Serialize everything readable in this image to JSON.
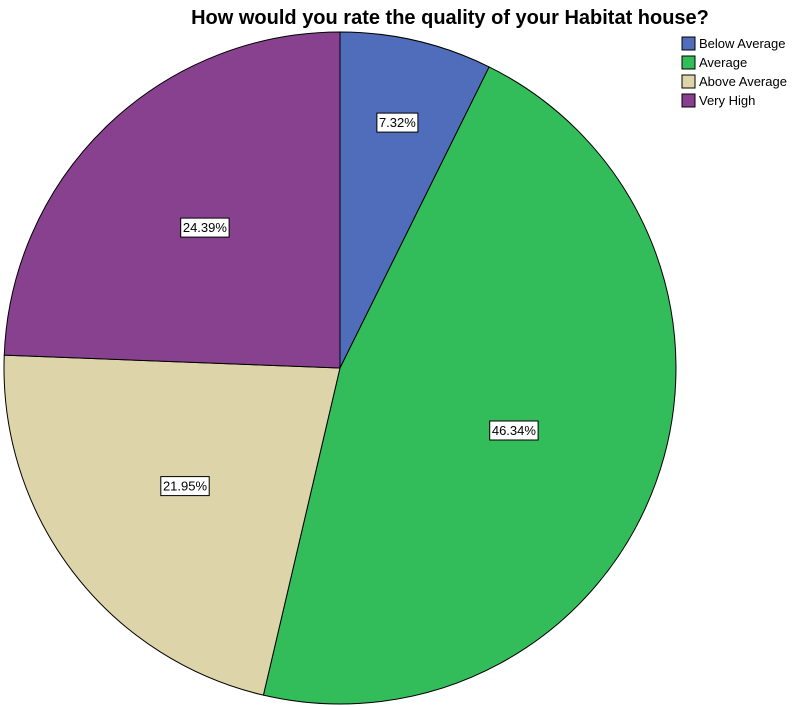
{
  "chart_data": {
    "type": "pie",
    "title": "How would you rate the quality of your Habitat house?",
    "categories": [
      "Below Average",
      "Average",
      "Above Average",
      "Very High"
    ],
    "values": [
      7.32,
      46.34,
      21.95,
      24.39
    ],
    "data_labels": [
      "7.32%",
      "46.34%",
      "21.95%",
      "24.39%"
    ],
    "colors": [
      "#4f6dbb",
      "#33bd5a",
      "#ddd5a9",
      "#88418f"
    ],
    "start_angle_deg": 0,
    "direction": "clockwise",
    "legend_position": "top-right"
  }
}
